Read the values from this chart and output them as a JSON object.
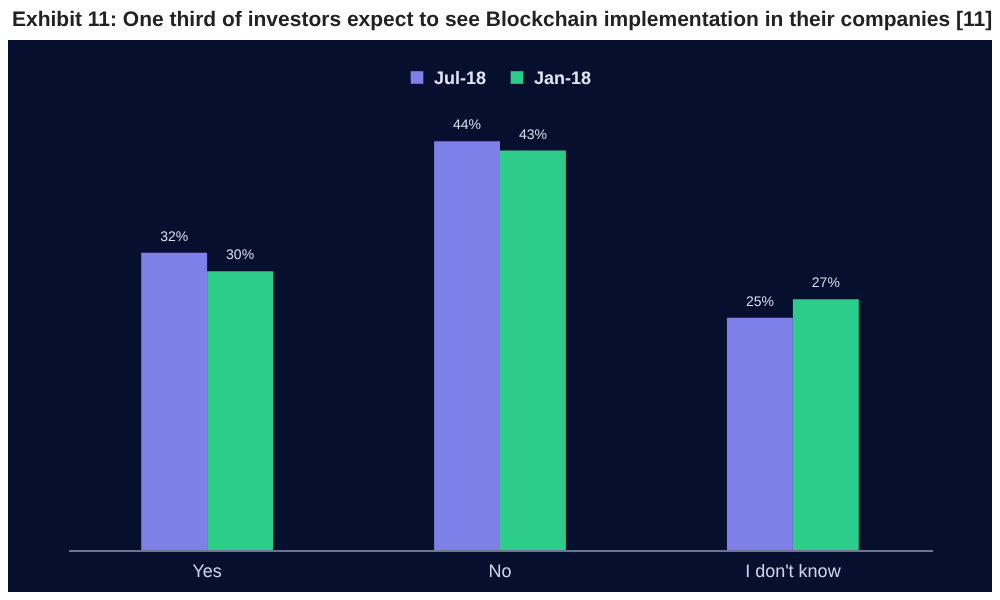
{
  "chart_data": {
    "type": "bar",
    "title": "Exhibit 11: One third of investors expect to see Blockchain implementation in their companies [11]",
    "categories": [
      "Yes",
      "No",
      "I don't know"
    ],
    "series": [
      {
        "name": "Jul-18",
        "color": "#7f7fe8",
        "values": [
          32,
          44,
          25
        ],
        "value_labels": [
          "32%",
          "44%",
          "25%"
        ]
      },
      {
        "name": "Jan-18",
        "color": "#2ecc8a",
        "values": [
          30,
          43,
          27
        ],
        "value_labels": [
          "30%",
          "43%",
          "27%"
        ]
      }
    ],
    "legend": "top",
    "tick_labels": "x"
  }
}
